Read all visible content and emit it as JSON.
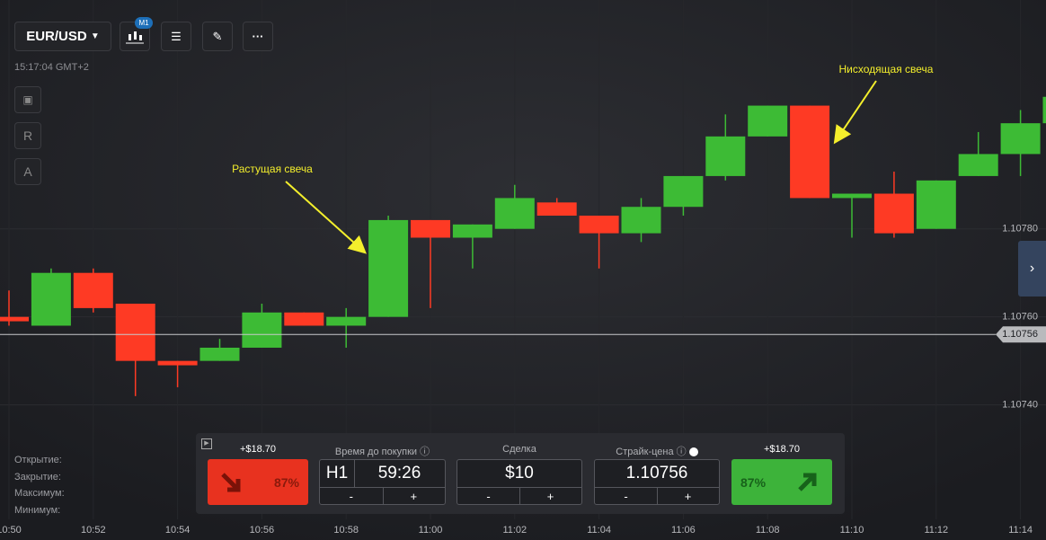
{
  "header": {
    "symbol": "EUR/USD",
    "timeframe": "M1",
    "clock": "15:17:04 GMT+2",
    "side_buttons": [
      "R",
      "A"
    ]
  },
  "chart_data": {
    "type": "candlestick",
    "categories": [
      "10:50",
      null,
      "10:52",
      null,
      "10:54",
      null,
      "10:56",
      null,
      "10:58",
      null,
      "11:00",
      null,
      "11:02",
      null,
      "11:04",
      null,
      "11:06",
      null,
      "11:08",
      null,
      "11:10",
      null,
      "11:12",
      null,
      "11:14",
      null
    ],
    "open": [
      1.1076,
      1.10758,
      1.1077,
      1.10763,
      1.1075,
      1.1075,
      1.10753,
      1.10761,
      1.10758,
      1.1076,
      1.10782,
      1.10778,
      1.1078,
      1.10786,
      1.10783,
      1.10779,
      1.10785,
      1.10792,
      1.10801,
      1.10808,
      1.10787,
      1.10788,
      1.1078,
      1.10792,
      1.10797,
      1.10804
    ],
    "high": [
      1.10766,
      1.10771,
      1.10771,
      1.10763,
      1.1075,
      1.10755,
      1.10763,
      1.10761,
      1.10762,
      1.10783,
      1.10782,
      1.10781,
      1.1079,
      1.10787,
      1.10783,
      1.10787,
      1.10792,
      1.10806,
      1.10808,
      1.10808,
      1.10788,
      1.10793,
      1.10791,
      1.10802,
      1.10807,
      1.1081
    ],
    "low": [
      1.10758,
      1.10758,
      1.10761,
      1.10742,
      1.10744,
      1.1075,
      1.10753,
      1.10758,
      1.10753,
      1.1076,
      1.10762,
      1.10771,
      1.1078,
      1.10783,
      1.10771,
      1.10777,
      1.10783,
      1.10791,
      1.10801,
      1.10787,
      1.10778,
      1.10778,
      1.1078,
      1.10792,
      1.10792,
      1.10804
    ],
    "close": [
      1.10759,
      1.1077,
      1.10762,
      1.1075,
      1.10749,
      1.10753,
      1.10761,
      1.10758,
      1.1076,
      1.10782,
      1.10778,
      1.10781,
      1.10787,
      1.10783,
      1.10779,
      1.10785,
      1.10792,
      1.10801,
      1.10808,
      1.10787,
      1.10788,
      1.10779,
      1.10791,
      1.10797,
      1.10804,
      1.1081
    ],
    "up_color": "#3dbb35",
    "down_color": "#fe3a24",
    "ylim": [
      1.10714,
      1.10832
    ],
    "yticks": [
      {
        "value": 1.1074,
        "label": "1.10740"
      },
      {
        "value": 1.1076,
        "label": "1.10760"
      },
      {
        "value": 1.1078,
        "label": "1.10780"
      }
    ],
    "current_price": 1.10756,
    "annotations": [
      {
        "text": "Растущая свеча"
      },
      {
        "text": "Нисходящая свеча"
      }
    ]
  },
  "ohlc_labels": [
    "Открытие:",
    "Закрытие:",
    "Максимум:",
    "Минимум:"
  ],
  "trade_panel": {
    "down": {
      "profit": "+$18.70",
      "percent": "87%"
    },
    "time": {
      "label": "Время до покупки",
      "unit": "H1",
      "value": "59:26",
      "minus": "-",
      "plus": "+"
    },
    "amount": {
      "label": "Сделка",
      "value": "$10",
      "minus": "-",
      "plus": "+"
    },
    "strike": {
      "label": "Страйк-цена",
      "value": "1.10756",
      "minus": "-",
      "plus": "+"
    },
    "up": {
      "profit": "+$18.70",
      "percent": "87%"
    }
  }
}
